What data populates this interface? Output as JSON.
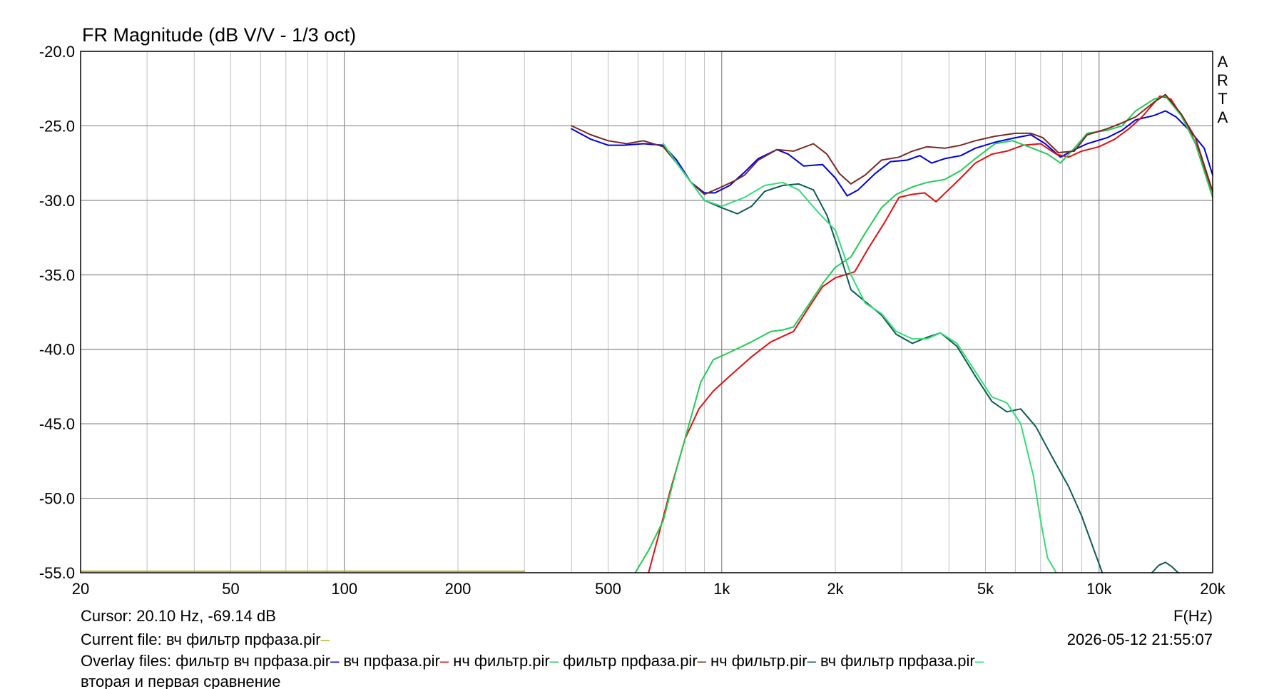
{
  "chart_data": {
    "type": "line",
    "title": "FR Magnitude (dB V/V - 1/3 oct)",
    "watermark": "ARTA",
    "xlabel": "F(Hz)",
    "x_scale": "log",
    "xlim": [
      20,
      20000
    ],
    "ylim": [
      -55,
      -20
    ],
    "y_ticks": [
      "-20.0",
      "-25.0",
      "-30.0",
      "-35.0",
      "-40.0",
      "-45.0",
      "-50.0",
      "-55.0"
    ],
    "y_tick_values": [
      -20,
      -25,
      -30,
      -35,
      -40,
      -45,
      -50,
      -55
    ],
    "x_ticks": [
      "20",
      "50",
      "100",
      "200",
      "500",
      "1k",
      "2k",
      "5k",
      "10k",
      "20k"
    ],
    "x_tick_values": [
      20,
      50,
      100,
      200,
      500,
      1000,
      2000,
      5000,
      10000,
      20000
    ],
    "grid": true,
    "series": [
      {
        "name": "вч фильтр прфаза.pir",
        "color": "#b8b02a",
        "points": [
          [
            20,
            -54.9
          ],
          [
            300,
            -54.9
          ]
        ]
      },
      {
        "name": "фильтр вч прфаза.pir",
        "color": "#0000e0",
        "points": [
          [
            400,
            -25.2
          ],
          [
            450,
            -25.9
          ],
          [
            500,
            -26.3
          ],
          [
            550,
            -26.3
          ],
          [
            620,
            -26.2
          ],
          [
            700,
            -26.3
          ],
          [
            760,
            -27.3
          ],
          [
            830,
            -28.8
          ],
          [
            900,
            -29.5
          ],
          [
            960,
            -29.5
          ],
          [
            1050,
            -29.0
          ],
          [
            1150,
            -28.1
          ],
          [
            1250,
            -27.2
          ],
          [
            1400,
            -26.6
          ],
          [
            1500,
            -26.9
          ],
          [
            1650,
            -27.7
          ],
          [
            1850,
            -27.6
          ],
          [
            2000,
            -28.5
          ],
          [
            2150,
            -29.7
          ],
          [
            2300,
            -29.3
          ],
          [
            2550,
            -28.2
          ],
          [
            2800,
            -27.4
          ],
          [
            3100,
            -27.3
          ],
          [
            3350,
            -27.0
          ],
          [
            3600,
            -27.5
          ],
          [
            3900,
            -27.2
          ],
          [
            4300,
            -27.0
          ],
          [
            4700,
            -26.5
          ],
          [
            5300,
            -26.1
          ],
          [
            6000,
            -25.8
          ],
          [
            6600,
            -25.6
          ],
          [
            7200,
            -26.2
          ],
          [
            7900,
            -27.1
          ],
          [
            8600,
            -26.6
          ],
          [
            9300,
            -26.2
          ],
          [
            10500,
            -25.8
          ],
          [
            11500,
            -25.3
          ],
          [
            12500,
            -24.6
          ],
          [
            14000,
            -24.3
          ],
          [
            15000,
            -24.0
          ],
          [
            16000,
            -24.4
          ],
          [
            17500,
            -25.4
          ],
          [
            19000,
            -26.5
          ],
          [
            20000,
            -28.3
          ]
        ]
      },
      {
        "name": "вч прфаза.pir",
        "color": "#e01010",
        "points": [
          [
            640,
            -55
          ],
          [
            680,
            -52.5
          ],
          [
            730,
            -49.5
          ],
          [
            800,
            -46.0
          ],
          [
            870,
            -44.0
          ],
          [
            950,
            -42.8
          ],
          [
            1050,
            -41.8
          ],
          [
            1200,
            -40.5
          ],
          [
            1350,
            -39.5
          ],
          [
            1550,
            -38.8
          ],
          [
            1700,
            -37.2
          ],
          [
            1850,
            -35.8
          ],
          [
            2000,
            -35.2
          ],
          [
            2250,
            -34.8
          ],
          [
            2450,
            -33.2
          ],
          [
            2700,
            -31.5
          ],
          [
            2950,
            -29.8
          ],
          [
            3200,
            -29.6
          ],
          [
            3450,
            -29.5
          ],
          [
            3700,
            -30.1
          ],
          [
            3950,
            -29.4
          ],
          [
            4300,
            -28.5
          ],
          [
            4700,
            -27.5
          ],
          [
            5200,
            -26.9
          ],
          [
            5700,
            -26.7
          ],
          [
            6300,
            -26.3
          ],
          [
            7000,
            -26.2
          ],
          [
            7700,
            -26.9
          ],
          [
            8300,
            -27.1
          ],
          [
            9000,
            -26.7
          ],
          [
            10000,
            -26.4
          ],
          [
            11000,
            -25.9
          ],
          [
            12000,
            -25.2
          ],
          [
            13000,
            -24.4
          ],
          [
            14500,
            -23.0
          ],
          [
            15500,
            -23.2
          ],
          [
            17000,
            -24.8
          ],
          [
            18500,
            -26.8
          ],
          [
            20000,
            -29.8
          ]
        ]
      },
      {
        "name": "нч фильтр.pir",
        "color": "#22cc55",
        "points": [
          [
            590,
            -55
          ],
          [
            640,
            -53.5
          ],
          [
            700,
            -51.5
          ],
          [
            760,
            -48.0
          ],
          [
            820,
            -45.0
          ],
          [
            880,
            -42.2
          ],
          [
            950,
            -40.7
          ],
          [
            1050,
            -40.2
          ],
          [
            1200,
            -39.5
          ],
          [
            1350,
            -38.8
          ],
          [
            1450,
            -38.7
          ],
          [
            1550,
            -38.5
          ],
          [
            1700,
            -37.0
          ],
          [
            1850,
            -35.6
          ],
          [
            2000,
            -34.5
          ],
          [
            2200,
            -33.8
          ],
          [
            2400,
            -32.2
          ],
          [
            2650,
            -30.5
          ],
          [
            2900,
            -29.6
          ],
          [
            3200,
            -29.1
          ],
          [
            3500,
            -28.8
          ],
          [
            3900,
            -28.6
          ],
          [
            4300,
            -28.0
          ],
          [
            4700,
            -27.2
          ],
          [
            5300,
            -26.2
          ],
          [
            5900,
            -26.0
          ],
          [
            6500,
            -26.4
          ],
          [
            7300,
            -26.9
          ],
          [
            7900,
            -27.5
          ],
          [
            8600,
            -26.5
          ],
          [
            9300,
            -25.5
          ],
          [
            10500,
            -25.3
          ],
          [
            11500,
            -25.0
          ],
          [
            12500,
            -24.0
          ],
          [
            14000,
            -23.2
          ],
          [
            15000,
            -23.0
          ],
          [
            16500,
            -24.3
          ],
          [
            18000,
            -26.2
          ],
          [
            20000,
            -29.8
          ]
        ]
      },
      {
        "name": "фильтр прфаза.pir",
        "color": "#7a2a22",
        "points": [
          [
            400,
            -25.0
          ],
          [
            450,
            -25.6
          ],
          [
            500,
            -26.0
          ],
          [
            560,
            -26.2
          ],
          [
            620,
            -26.0
          ],
          [
            700,
            -26.4
          ],
          [
            760,
            -27.5
          ],
          [
            830,
            -28.8
          ],
          [
            900,
            -29.6
          ],
          [
            980,
            -29.2
          ],
          [
            1080,
            -28.7
          ],
          [
            1150,
            -28.3
          ],
          [
            1250,
            -27.3
          ],
          [
            1400,
            -26.6
          ],
          [
            1550,
            -26.7
          ],
          [
            1750,
            -26.2
          ],
          [
            1900,
            -26.9
          ],
          [
            2050,
            -28.2
          ],
          [
            2200,
            -28.9
          ],
          [
            2400,
            -28.3
          ],
          [
            2650,
            -27.3
          ],
          [
            2950,
            -27.1
          ],
          [
            3200,
            -26.7
          ],
          [
            3500,
            -26.4
          ],
          [
            3900,
            -26.5
          ],
          [
            4300,
            -26.3
          ],
          [
            4700,
            -26.0
          ],
          [
            5300,
            -25.7
          ],
          [
            6000,
            -25.5
          ],
          [
            6600,
            -25.5
          ],
          [
            7100,
            -25.8
          ],
          [
            7800,
            -26.8
          ],
          [
            8600,
            -26.7
          ],
          [
            9300,
            -25.6
          ],
          [
            10500,
            -25.2
          ],
          [
            11500,
            -24.8
          ],
          [
            12500,
            -24.4
          ],
          [
            14000,
            -23.4
          ],
          [
            15000,
            -22.9
          ],
          [
            16500,
            -24.2
          ],
          [
            18000,
            -25.8
          ],
          [
            20000,
            -29.4
          ]
        ]
      },
      {
        "name": "нч фильтр.pir",
        "color": "#0d5c52",
        "points": [
          [
            700,
            -26.2
          ],
          [
            760,
            -27.5
          ],
          [
            830,
            -28.8
          ],
          [
            900,
            -30.0
          ],
          [
            1000,
            -30.5
          ],
          [
            1100,
            -30.9
          ],
          [
            1200,
            -30.4
          ],
          [
            1300,
            -29.4
          ],
          [
            1450,
            -29.0
          ],
          [
            1600,
            -28.9
          ],
          [
            1750,
            -29.3
          ],
          [
            1900,
            -31.0
          ],
          [
            2050,
            -33.5
          ],
          [
            2200,
            -36.0
          ],
          [
            2400,
            -36.8
          ],
          [
            2650,
            -37.7
          ],
          [
            2900,
            -39.0
          ],
          [
            3200,
            -39.6
          ],
          [
            3500,
            -39.2
          ],
          [
            3800,
            -38.9
          ],
          [
            4200,
            -39.8
          ],
          [
            4700,
            -41.8
          ],
          [
            5200,
            -43.5
          ],
          [
            5700,
            -44.2
          ],
          [
            6200,
            -44.0
          ],
          [
            6800,
            -45.2
          ],
          [
            7500,
            -47.2
          ],
          [
            8300,
            -49.2
          ],
          [
            9000,
            -51.2
          ],
          [
            9700,
            -53.5
          ],
          [
            10200,
            -55
          ]
        ]
      },
      {
        "name": "вч фильтр прфаза.pir",
        "color": "#33dd77",
        "points": [
          [
            700,
            -26.2
          ],
          [
            760,
            -27.5
          ],
          [
            830,
            -28.8
          ],
          [
            900,
            -30.0
          ],
          [
            1000,
            -30.4
          ],
          [
            1150,
            -29.8
          ],
          [
            1300,
            -29.0
          ],
          [
            1450,
            -28.8
          ],
          [
            1600,
            -29.3
          ],
          [
            1800,
            -30.8
          ],
          [
            2000,
            -32.0
          ],
          [
            2200,
            -35.0
          ],
          [
            2400,
            -36.9
          ],
          [
            2650,
            -37.6
          ],
          [
            2900,
            -38.8
          ],
          [
            3200,
            -39.3
          ],
          [
            3500,
            -39.3
          ],
          [
            3800,
            -38.9
          ],
          [
            4200,
            -39.6
          ],
          [
            4700,
            -41.5
          ],
          [
            5200,
            -43.2
          ],
          [
            5700,
            -43.6
          ],
          [
            6200,
            -45.0
          ],
          [
            6700,
            -48.5
          ],
          [
            7000,
            -51.5
          ],
          [
            7300,
            -54.0
          ],
          [
            7700,
            -55
          ]
        ]
      },
      {
        "name": "",
        "color": "#0d5c52",
        "points": [
          [
            13800,
            -55
          ],
          [
            14400,
            -54.5
          ],
          [
            15000,
            -54.3
          ],
          [
            15600,
            -54.6
          ],
          [
            16200,
            -55
          ]
        ]
      }
    ]
  },
  "footer": {
    "cursor_text": "Cursor: 20.10 Hz, -69.14 dB",
    "current_file_text": "Current file: вч фильтр прфаза.pir",
    "current_file_color": "#b8b02a",
    "date_text": "2026-05-12  21:55:07",
    "overlay_label": "Overlay files:",
    "overlay_items": [
      {
        "text": "фильтр вч прфаза.pir",
        "color": "#0000e0"
      },
      {
        "text": "вч прфаза.pir",
        "color": "#e01010"
      },
      {
        "text": "нч фильтр.pir",
        "color": "#22cc55"
      },
      {
        "text": "фильтр прфаза.pir",
        "color": "#7a2a22"
      },
      {
        "text": "нч фильтр.pir",
        "color": "#0d5c52"
      },
      {
        "text": "вч фильтр прфаза.pir",
        "color": "#33dd77"
      }
    ],
    "description": "вторая и первая сравнение"
  }
}
